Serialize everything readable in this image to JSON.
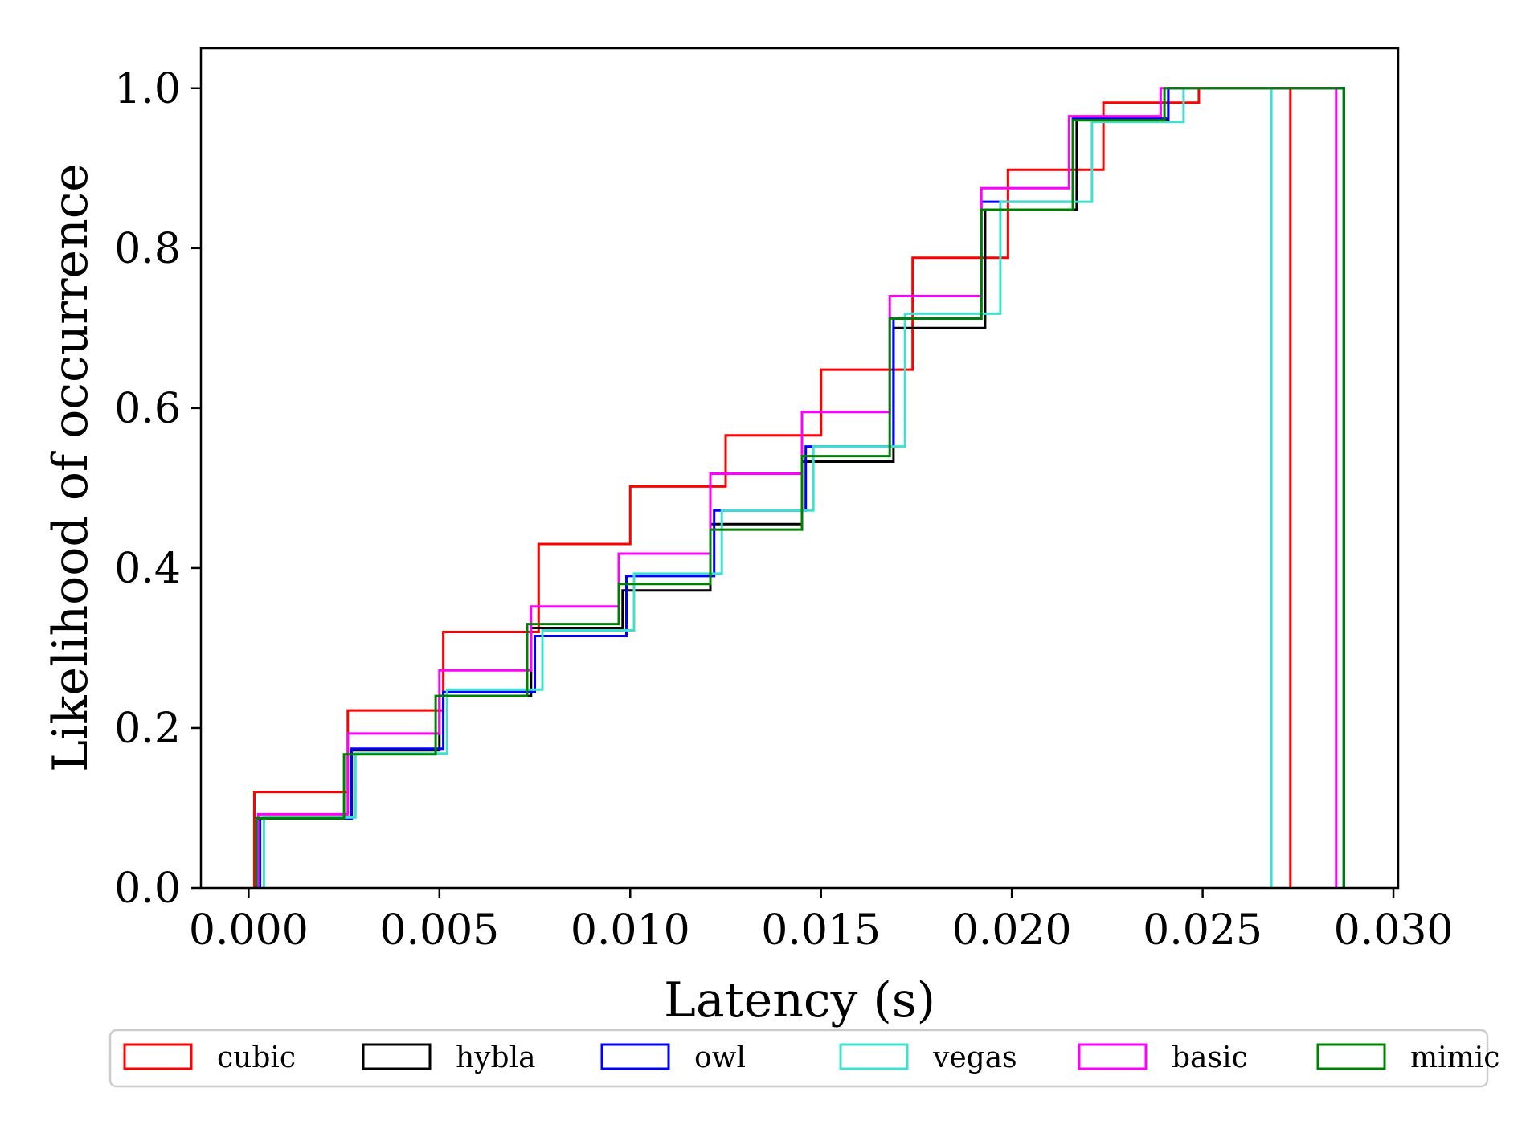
{
  "chart_data": {
    "type": "step",
    "xlabel": "Latency (s)",
    "ylabel": "Likelihood of occurrence",
    "xlim": [
      -0.00125,
      0.030125
    ],
    "ylim": [
      0,
      1.05
    ],
    "xticks": [
      0.0,
      0.005,
      0.01,
      0.015,
      0.02,
      0.025,
      0.03
    ],
    "xtick_labels": [
      "0.000",
      "0.005",
      "0.010",
      "0.015",
      "0.020",
      "0.025",
      "0.030"
    ],
    "yticks": [
      0.0,
      0.2,
      0.4,
      0.6,
      0.8,
      1.0
    ],
    "ytick_labels": [
      "0.0",
      "0.2",
      "0.4",
      "0.6",
      "0.8",
      "1.0"
    ],
    "grid": false,
    "legend_position": "bottom, outside plot, single row",
    "series": [
      {
        "name": "cubic",
        "color": "#ff0000",
        "x": [
          0.00015,
          0.0026,
          0.0051,
          0.0076,
          0.01,
          0.0125,
          0.015,
          0.0174,
          0.0199,
          0.0224,
          0.0249,
          0.0273
        ],
        "y": [
          0.12,
          0.222,
          0.32,
          0.43,
          0.502,
          0.566,
          0.648,
          0.788,
          0.898,
          0.982,
          1.0,
          1.0
        ]
      },
      {
        "name": "hybla",
        "color": "#000000",
        "x": [
          0.00025,
          0.0027,
          0.005,
          0.0074,
          0.0098,
          0.0121,
          0.0145,
          0.0169,
          0.0193,
          0.0217,
          0.0241,
          0.0287
        ],
        "y": [
          0.087,
          0.172,
          0.24,
          0.325,
          0.372,
          0.455,
          0.533,
          0.7,
          0.848,
          0.96,
          1.0,
          1.0
        ]
      },
      {
        "name": "owl",
        "color": "#0000ff",
        "x": [
          0.0003,
          0.0027,
          0.0051,
          0.0075,
          0.0099,
          0.0122,
          0.0146,
          0.0169,
          0.0192,
          0.0216,
          0.0241,
          0.0287
        ],
        "y": [
          0.087,
          0.174,
          0.245,
          0.315,
          0.39,
          0.472,
          0.552,
          0.712,
          0.858,
          0.962,
          1.0,
          1.0
        ]
      },
      {
        "name": "vegas",
        "color": "#40e0d0",
        "x": [
          0.0004,
          0.0028,
          0.0052,
          0.0077,
          0.0101,
          0.0124,
          0.0148,
          0.0172,
          0.0197,
          0.0221,
          0.0245,
          0.0268
        ],
        "y": [
          0.088,
          0.168,
          0.248,
          0.322,
          0.393,
          0.472,
          0.552,
          0.718,
          0.858,
          0.958,
          1.0,
          1.0
        ]
      },
      {
        "name": "basic",
        "color": "#ff00ff",
        "x": [
          0.00025,
          0.0026,
          0.005,
          0.0074,
          0.0097,
          0.0121,
          0.0145,
          0.0168,
          0.0192,
          0.0215,
          0.0239,
          0.0285
        ],
        "y": [
          0.092,
          0.193,
          0.272,
          0.352,
          0.418,
          0.518,
          0.595,
          0.74,
          0.875,
          0.965,
          1.0,
          1.0
        ]
      },
      {
        "name": "mimic",
        "color": "#008000",
        "x": [
          0.0002,
          0.0025,
          0.0049,
          0.0073,
          0.0097,
          0.0121,
          0.0145,
          0.0168,
          0.0192,
          0.0216,
          0.024,
          0.0287
        ],
        "y": [
          0.087,
          0.167,
          0.24,
          0.33,
          0.38,
          0.448,
          0.54,
          0.712,
          0.848,
          0.96,
          1.0,
          1.0
        ]
      }
    ]
  }
}
